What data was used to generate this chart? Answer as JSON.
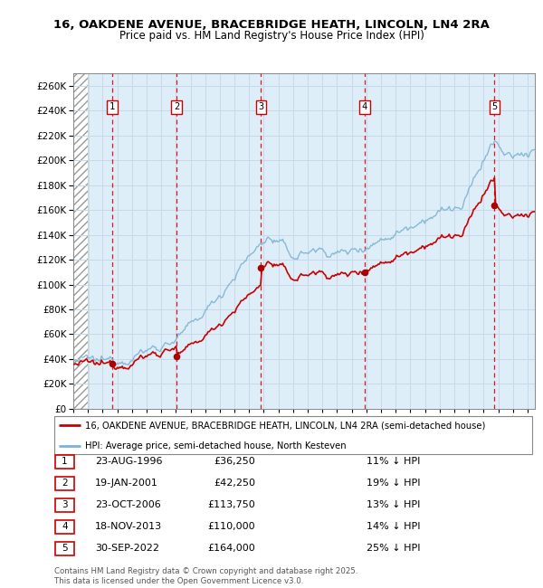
{
  "title": "16, OAKDENE AVENUE, BRACEBRIDGE HEATH, LINCOLN, LN4 2RA",
  "subtitle": "Price paid vs. HM Land Registry's House Price Index (HPI)",
  "ytick_values": [
    0,
    20000,
    40000,
    60000,
    80000,
    100000,
    120000,
    140000,
    160000,
    180000,
    200000,
    220000,
    240000,
    260000
  ],
  "ylim": [
    0,
    270000
  ],
  "xlim_start": 1994.0,
  "xlim_end": 2025.5,
  "transactions": [
    {
      "num": 1,
      "date_x": 1996.645,
      "price": 36250,
      "label": "23-AUG-1996",
      "price_str": "£36,250",
      "hpi_str": "11% ↓ HPI"
    },
    {
      "num": 2,
      "date_x": 2001.055,
      "price": 42250,
      "label": "19-JAN-2001",
      "price_str": "£42,250",
      "hpi_str": "19% ↓ HPI"
    },
    {
      "num": 3,
      "date_x": 2006.814,
      "price": 113750,
      "label": "23-OCT-2006",
      "price_str": "£113,750",
      "hpi_str": "13% ↓ HPI"
    },
    {
      "num": 4,
      "date_x": 2013.883,
      "price": 110000,
      "label": "18-NOV-2013",
      "price_str": "£110,000",
      "hpi_str": "14% ↓ HPI"
    },
    {
      "num": 5,
      "date_x": 2022.747,
      "price": 164000,
      "label": "30-SEP-2022",
      "price_str": "£164,000",
      "hpi_str": "25% ↓ HPI"
    }
  ],
  "hpi_color": "#7fb3d3",
  "price_color": "#cc0000",
  "marker_color": "#aa0000",
  "dashed_color": "#dd0000",
  "box_color": "#cc0000",
  "grid_color": "#c8d8e8",
  "bg_color": "#ddeef8",
  "hatch_color": "#bbbbbb",
  "footnote": "Contains HM Land Registry data © Crown copyright and database right 2025.\nThis data is licensed under the Open Government Licence v3.0.",
  "legend_line1": "16, OAKDENE AVENUE, BRACEBRIDGE HEATH, LINCOLN, LN4 2RA (semi-detached house)",
  "legend_line2": "HPI: Average price, semi-detached house, North Kesteven"
}
